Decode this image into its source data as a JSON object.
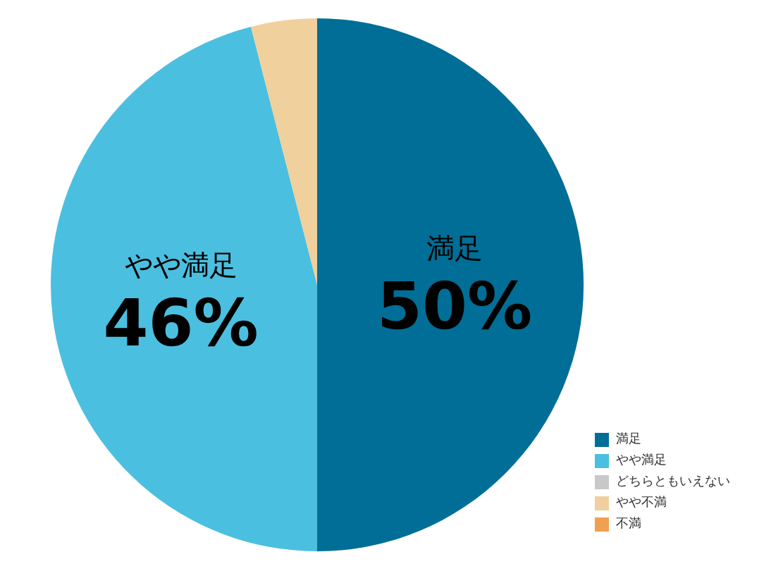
{
  "chart_data": {
    "type": "pie",
    "categories": [
      "満足",
      "やや満足",
      "どちらともいえない",
      "やや不満",
      "不満"
    ],
    "values": [
      50,
      46,
      0,
      4,
      0
    ],
    "colors": [
      "#006e96",
      "#4bbfe0",
      "#c8c8c8",
      "#f0d09c",
      "#f0a050"
    ],
    "value_labels": [
      "50%",
      "46%",
      null,
      null,
      null
    ],
    "legend": "bottom right"
  }
}
